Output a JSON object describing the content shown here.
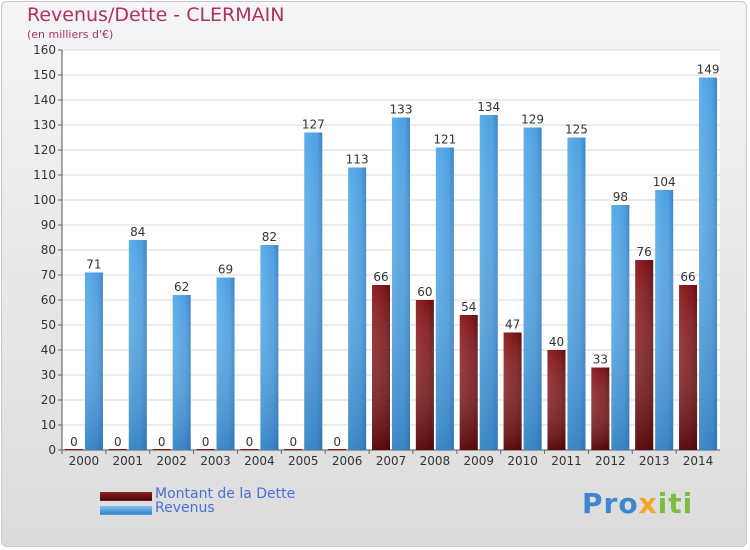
{
  "chart_data": {
    "type": "bar",
    "title": "Revenus/Dette - CLERMAIN",
    "subtitle": "(en milliers d'€)",
    "categories": [
      "2000",
      "2001",
      "2002",
      "2003",
      "2004",
      "2005",
      "2006",
      "2007",
      "2008",
      "2009",
      "2010",
      "2011",
      "2012",
      "2013",
      "2014"
    ],
    "series": [
      {
        "name": "Montant de la Dette",
        "color": "#7b1518",
        "values": [
          0,
          0,
          0,
          0,
          0,
          0,
          0,
          66,
          60,
          54,
          47,
          40,
          33,
          76,
          66
        ]
      },
      {
        "name": "Revenus",
        "color": "#4f9fe0",
        "values": [
          71,
          84,
          62,
          69,
          82,
          127,
          113,
          133,
          121,
          134,
          129,
          125,
          98,
          104,
          149
        ]
      }
    ],
    "ylim": [
      0,
      160
    ],
    "yticks": [
      0,
      10,
      20,
      30,
      40,
      50,
      60,
      70,
      80,
      90,
      100,
      110,
      120,
      130,
      140,
      150,
      160
    ],
    "grid": true,
    "legend_position": "bottom-left"
  },
  "logo": {
    "part1": "Pro",
    "part2": "x",
    "part3": "iti"
  }
}
